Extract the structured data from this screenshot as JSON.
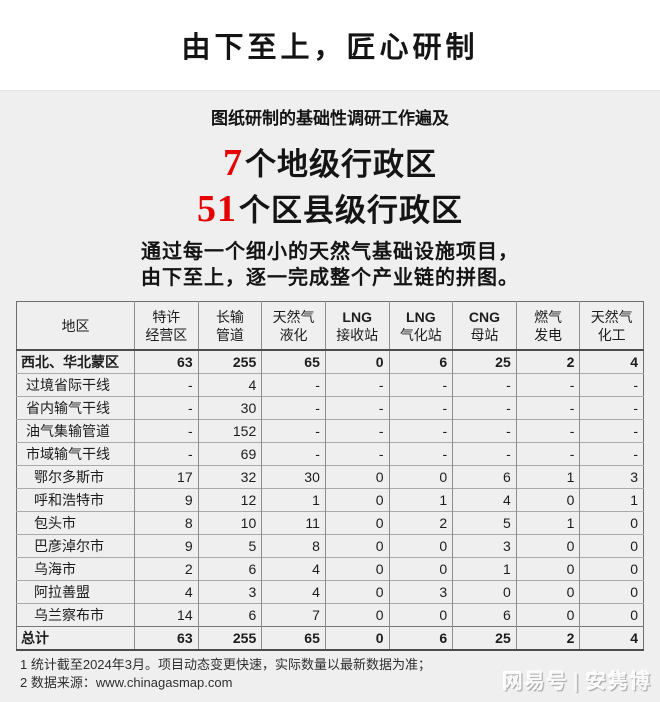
{
  "colors": {
    "accent_red": "#e60000",
    "page_bg": "#f0efef",
    "band_bg": "#ffffff"
  },
  "header": {
    "title": "由下至上，匠心研制"
  },
  "intro": {
    "subtitle": "图纸研制的基础性调研工作遍及",
    "highlights": [
      {
        "number": "7",
        "text": "个地级行政区"
      },
      {
        "number": "51",
        "text": "个区县级行政区"
      }
    ],
    "paragraph_lines": [
      "通过每一个细小的天然气基础设施项目，",
      "由下至上，逐一完成整个产业链的拼图。"
    ]
  },
  "table": {
    "columns": [
      {
        "line1": "地区",
        "line2": ""
      },
      {
        "line1": "特许",
        "line2": "经营区"
      },
      {
        "line1": "长输",
        "line2": "管道"
      },
      {
        "line1": "天然气",
        "line2": "液化"
      },
      {
        "line1": "LNG",
        "line2": "接收站"
      },
      {
        "line1": "LNG",
        "line2": "气化站"
      },
      {
        "line1": "CNG",
        "line2": "母站"
      },
      {
        "line1": "燃气",
        "line2": "发电"
      },
      {
        "line1": "天然气",
        "line2": "化工"
      }
    ],
    "rows": [
      {
        "region": "西北、华北蒙区",
        "indent": 0,
        "emphasis": true,
        "total": false,
        "values": [
          "63",
          "255",
          "65",
          "0",
          "6",
          "25",
          "2",
          "4"
        ]
      },
      {
        "region": "过境省际干线",
        "indent": 1,
        "emphasis": false,
        "total": false,
        "values": [
          "-",
          "4",
          "-",
          "-",
          "-",
          "-",
          "-",
          "-"
        ]
      },
      {
        "region": "省内输气干线",
        "indent": 1,
        "emphasis": false,
        "total": false,
        "values": [
          "-",
          "30",
          "-",
          "-",
          "-",
          "-",
          "-",
          "-"
        ]
      },
      {
        "region": "油气集输管道",
        "indent": 1,
        "emphasis": false,
        "total": false,
        "values": [
          "-",
          "152",
          "-",
          "-",
          "-",
          "-",
          "-",
          "-"
        ]
      },
      {
        "region": "市域输气干线",
        "indent": 1,
        "emphasis": false,
        "total": false,
        "values": [
          "-",
          "69",
          "-",
          "-",
          "-",
          "-",
          "-",
          "-"
        ]
      },
      {
        "region": "鄂尔多斯市",
        "indent": 2,
        "emphasis": false,
        "total": false,
        "values": [
          "17",
          "32",
          "30",
          "0",
          "0",
          "6",
          "1",
          "3"
        ]
      },
      {
        "region": "呼和浩特市",
        "indent": 2,
        "emphasis": false,
        "total": false,
        "values": [
          "9",
          "12",
          "1",
          "0",
          "1",
          "4",
          "0",
          "1"
        ]
      },
      {
        "region": "包头市",
        "indent": 2,
        "emphasis": false,
        "total": false,
        "values": [
          "8",
          "10",
          "11",
          "0",
          "2",
          "5",
          "1",
          "0"
        ]
      },
      {
        "region": "巴彦淖尔市",
        "indent": 2,
        "emphasis": false,
        "total": false,
        "values": [
          "9",
          "5",
          "8",
          "0",
          "0",
          "3",
          "0",
          "0"
        ]
      },
      {
        "region": "乌海市",
        "indent": 2,
        "emphasis": false,
        "total": false,
        "values": [
          "2",
          "6",
          "4",
          "0",
          "0",
          "1",
          "0",
          "0"
        ]
      },
      {
        "region": "阿拉善盟",
        "indent": 2,
        "emphasis": false,
        "total": false,
        "values": [
          "4",
          "3",
          "4",
          "0",
          "3",
          "0",
          "0",
          "0"
        ]
      },
      {
        "region": "乌兰察布市",
        "indent": 2,
        "emphasis": false,
        "total": false,
        "values": [
          "14",
          "6",
          "7",
          "0",
          "0",
          "6",
          "0",
          "0"
        ]
      },
      {
        "region": "总计",
        "indent": 0,
        "emphasis": true,
        "total": true,
        "values": [
          "63",
          "255",
          "65",
          "0",
          "6",
          "25",
          "2",
          "4"
        ]
      }
    ]
  },
  "footnotes": {
    "line1": "1 统计截至2024年3月。项目动态变更快速，实际数量以最新数据为准；",
    "line2_label": "2 数据来源：",
    "line2_url": "www.chinagasmap.com"
  },
  "watermark": {
    "brand": "网易号",
    "separator": "|",
    "author": "安隽博"
  }
}
